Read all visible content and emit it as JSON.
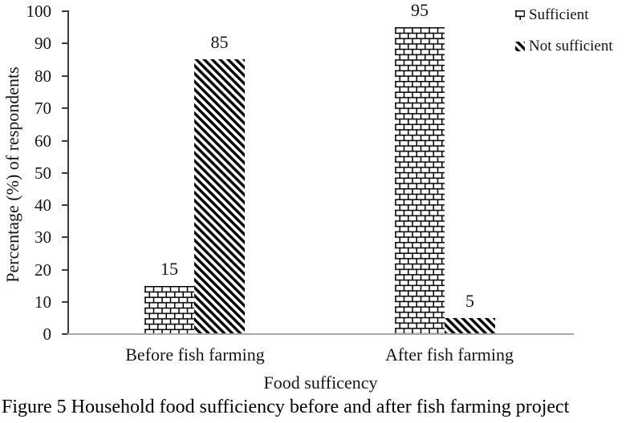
{
  "figure": {
    "caption": "Figure 5 Household food sufficiency before and after fish farming project"
  },
  "chart_data": {
    "type": "bar",
    "categories": [
      "Before fish farming",
      "After fish farming"
    ],
    "series": [
      {
        "name": "Sufficient",
        "pattern": "brick-hatch",
        "values": [
          15,
          95
        ]
      },
      {
        "name": "Not sufficient",
        "pattern": "diagonal-stripe-hatch",
        "values": [
          85,
          5
        ]
      }
    ],
    "data_labels": [
      15,
      85,
      95,
      5
    ],
    "xlabel": "Food sufficency",
    "ylabel": "Percentage (%) of respondents",
    "ylim": [
      0,
      100
    ],
    "ytick_step": 10,
    "yticks": [
      0,
      10,
      20,
      30,
      40,
      50,
      60,
      70,
      80,
      90,
      100
    ],
    "grid": false,
    "legend_position": "top-right",
    "colors": {
      "pattern_ink": "#000000",
      "background": "#ffffff",
      "y_axis_line": "#3c3c3c",
      "x_axis_line": "#a8a8a8",
      "text": "#14141e"
    }
  }
}
